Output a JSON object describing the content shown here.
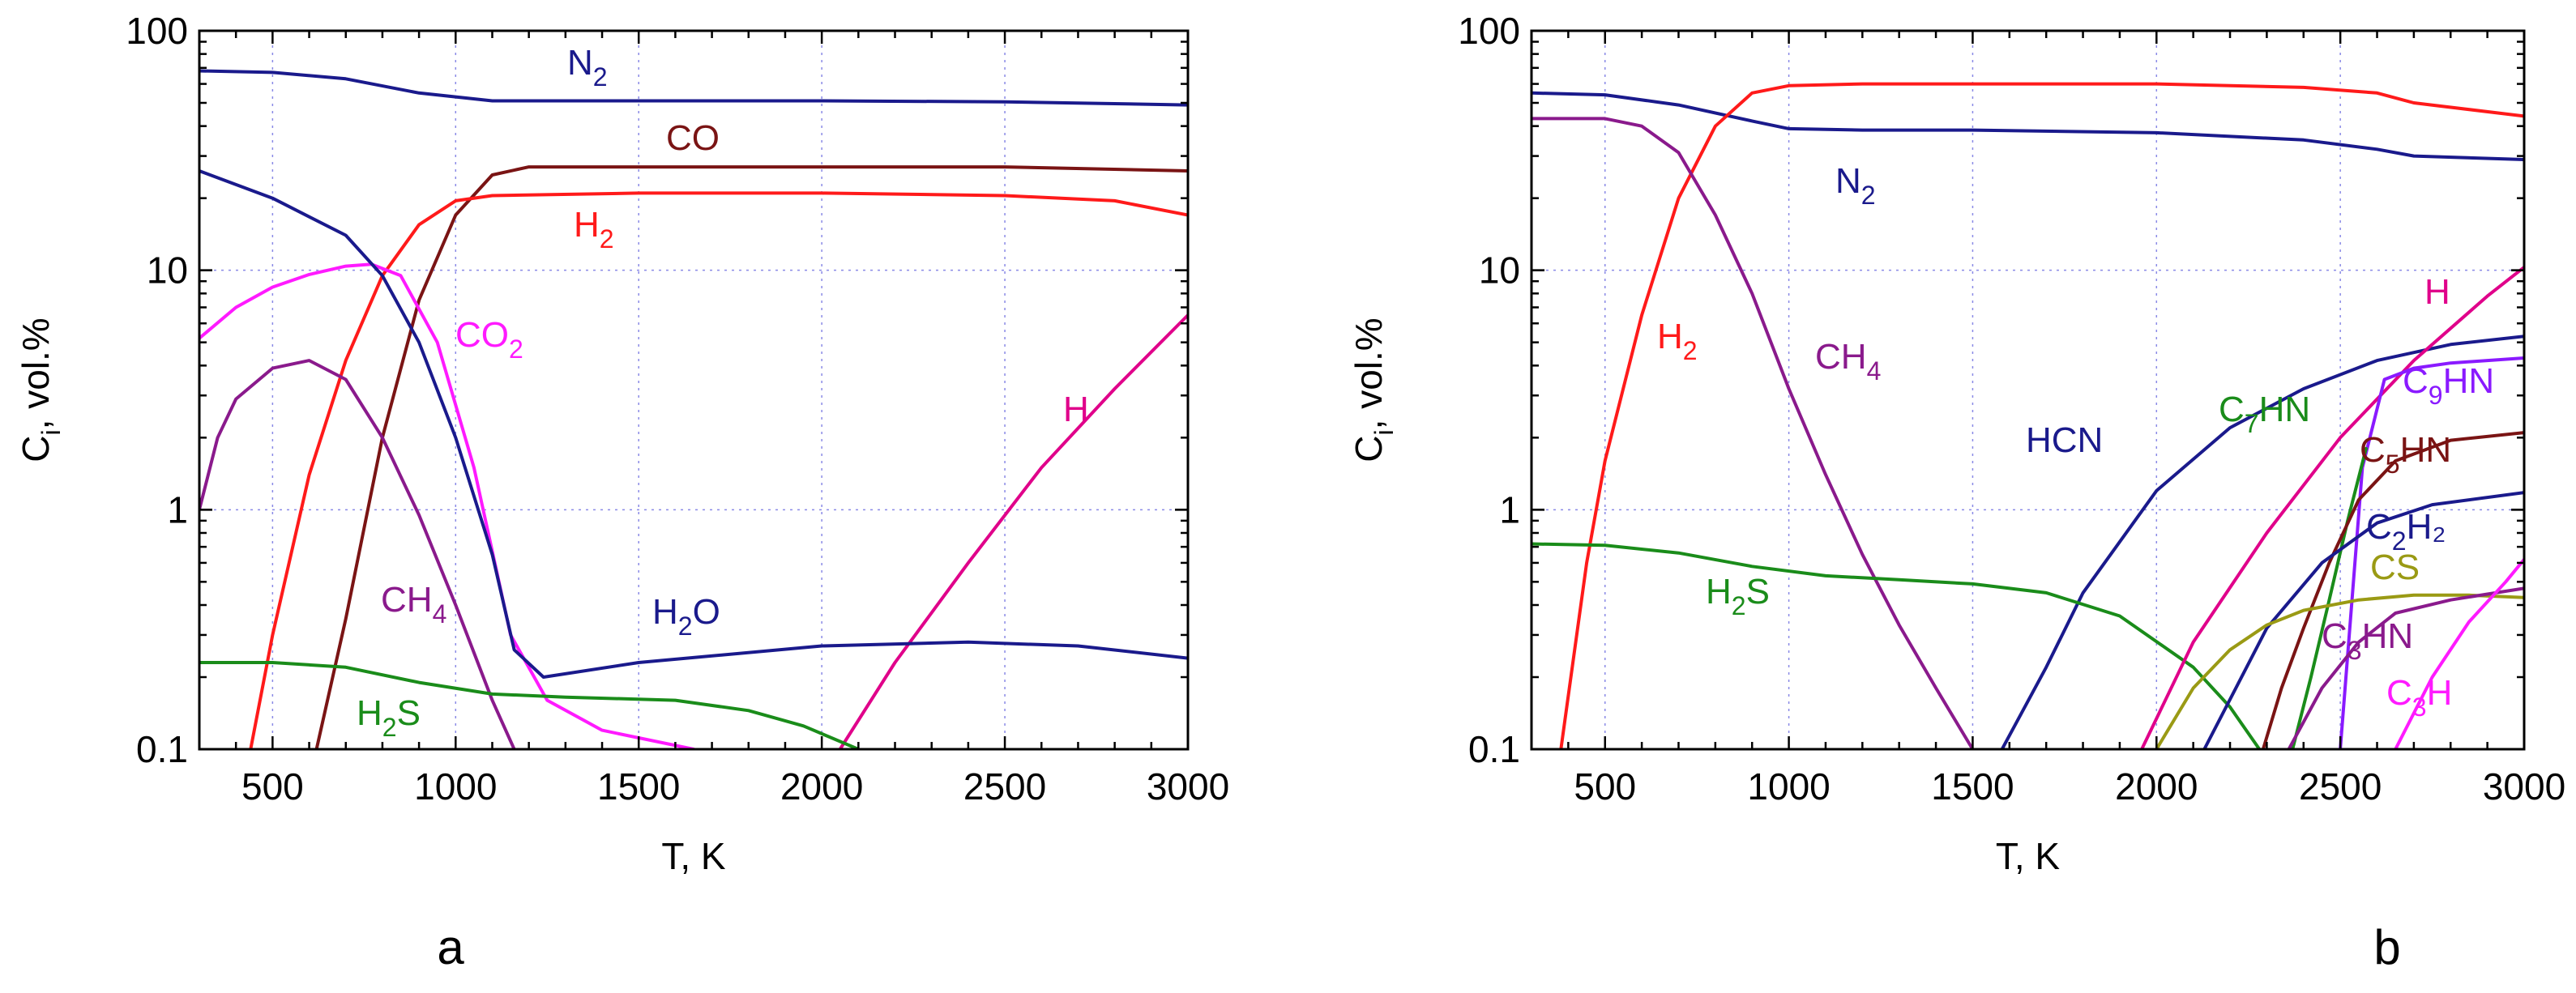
{
  "chart_data": [
    {
      "type": "line",
      "panel_label": "a",
      "xlabel": "T, K",
      "ylabel": {
        "base": "C",
        "sub": "i",
        "rest": ", vol.%"
      },
      "xlim": [
        300,
        3000
      ],
      "ylim": [
        0.1,
        100
      ],
      "yscale": "log",
      "xticks": [
        500,
        1000,
        1500,
        2000,
        2500,
        3000
      ],
      "yticks": [
        0.1,
        1,
        10,
        100
      ],
      "ytick_labels": [
        "0.1",
        "1",
        "10",
        "100"
      ],
      "grid": true,
      "series": [
        {
          "name": "N2",
          "label": {
            "base": "N",
            "sub": "2",
            "rest": ""
          },
          "color": "#1a1a8c",
          "x": [
            300,
            500,
            700,
            900,
            1100,
            1500,
            2000,
            2500,
            3000
          ],
          "y": [
            68,
            67,
            63,
            55,
            51,
            51,
            51,
            50.5,
            49
          ]
        },
        {
          "name": "CO",
          "label": {
            "base": "CO",
            "sub": "",
            "rest": ""
          },
          "color": "#7a1414",
          "x": [
            620,
            700,
            800,
            900,
            1000,
            1100,
            1200,
            1500,
            2000,
            2500,
            3000
          ],
          "y": [
            0.1,
            0.35,
            2.0,
            7.5,
            17,
            25,
            27,
            27,
            27,
            27,
            26
          ]
        },
        {
          "name": "H2",
          "label": {
            "base": "H",
            "sub": "2",
            "rest": ""
          },
          "color": "#ff1a1a",
          "x": [
            440,
            500,
            600,
            700,
            800,
            900,
            1000,
            1100,
            1500,
            2000,
            2500,
            2800,
            3000
          ],
          "y": [
            0.1,
            0.3,
            1.4,
            4.2,
            9.5,
            15.5,
            19.5,
            20.5,
            21,
            21,
            20.5,
            19.5,
            17
          ]
        },
        {
          "name": "CO2",
          "label": {
            "base": "CO",
            "sub": "2",
            "rest": ""
          },
          "color": "#ff1aff",
          "x": [
            300,
            400,
            500,
            600,
            700,
            770,
            850,
            950,
            1050,
            1150,
            1250,
            1400,
            1650
          ],
          "y": [
            5.2,
            7.0,
            8.5,
            9.6,
            10.4,
            10.6,
            9.5,
            5.0,
            1.5,
            0.3,
            0.16,
            0.12,
            0.1
          ]
        },
        {
          "name": "H",
          "label": {
            "base": "H",
            "sub": "",
            "rest": ""
          },
          "color": "#e0008a",
          "x": [
            2050,
            2200,
            2400,
            2600,
            2800,
            3000
          ],
          "y": [
            0.1,
            0.23,
            0.6,
            1.5,
            3.2,
            6.5
          ]
        },
        {
          "name": "CH4",
          "label": {
            "base": "CH",
            "sub": "4",
            "rest": ""
          },
          "color": "#8a1a8c",
          "x": [
            300,
            350,
            400,
            500,
            600,
            700,
            800,
            900,
            1000,
            1100,
            1160
          ],
          "y": [
            1.0,
            2.0,
            2.9,
            3.9,
            4.2,
            3.5,
            2.0,
            0.95,
            0.4,
            0.16,
            0.1
          ]
        },
        {
          "name": "H2O",
          "label": {
            "base": "H",
            "sub": "2",
            "rest": "O"
          },
          "color": "#1a1a8c",
          "x": [
            300,
            500,
            700,
            800,
            900,
            1000,
            1100,
            1160,
            1240,
            1500,
            2000,
            2400,
            2700,
            3000
          ],
          "y": [
            26,
            20,
            14,
            9.5,
            5.0,
            2.0,
            0.65,
            0.26,
            0.2,
            0.23,
            0.27,
            0.28,
            0.27,
            0.24
          ]
        },
        {
          "name": "H2S",
          "label": {
            "base": "H",
            "sub": "2",
            "rest": "S"
          },
          "color": "#1a8c1a",
          "x": [
            300,
            500,
            700,
            900,
            1100,
            1300,
            1600,
            1800,
            1950,
            2100
          ],
          "y": [
            0.23,
            0.23,
            0.22,
            0.19,
            0.17,
            0.165,
            0.16,
            0.145,
            0.125,
            0.1
          ]
        }
      ]
    },
    {
      "type": "line",
      "panel_label": "b",
      "xlabel": "T, K",
      "ylabel": {
        "base": "C",
        "sub": "i",
        "rest": ", vol.%"
      },
      "xlim": [
        300,
        3000
      ],
      "ylim": [
        0.1,
        100
      ],
      "yscale": "log",
      "xticks": [
        500,
        1000,
        1500,
        2000,
        2500,
        3000
      ],
      "yticks": [
        0.1,
        1,
        10,
        100
      ],
      "ytick_labels": [
        "0.1",
        "1",
        "10",
        "100"
      ],
      "grid": true,
      "series": [
        {
          "name": "N2",
          "label": {
            "base": "N",
            "sub": "2",
            "rest": ""
          },
          "color": "#1a1a8c",
          "x": [
            300,
            500,
            700,
            900,
            1000,
            1200,
            1500,
            2000,
            2400,
            2600,
            2700,
            3000
          ],
          "y": [
            55,
            54,
            49,
            42,
            39,
            38.5,
            38.5,
            37.5,
            35,
            32,
            30,
            29
          ]
        },
        {
          "name": "H2",
          "label": {
            "base": "H",
            "sub": "2",
            "rest": ""
          },
          "color": "#ff1a1a",
          "x": [
            380,
            450,
            500,
            600,
            700,
            800,
            900,
            1000,
            1200,
            1500,
            2000,
            2400,
            2600,
            2700,
            3000
          ],
          "y": [
            0.1,
            0.6,
            1.6,
            6.5,
            20,
            40,
            55,
            59,
            60,
            60,
            60,
            58,
            55,
            50,
            44
          ]
        },
        {
          "name": "CH4",
          "label": {
            "base": "CH",
            "sub": "4",
            "rest": ""
          },
          "color": "#8a1a8c",
          "x": [
            300,
            500,
            600,
            700,
            800,
            900,
            1000,
            1100,
            1200,
            1300,
            1400,
            1500
          ],
          "y": [
            43,
            43,
            40,
            31,
            17,
            8,
            3.2,
            1.4,
            0.65,
            0.33,
            0.18,
            0.1
          ]
        },
        {
          "name": "HCN",
          "label": {
            "base": "HCN",
            "sub": "",
            "rest": ""
          },
          "color": "#1a1a8c",
          "x": [
            1580,
            1700,
            1800,
            2000,
            2200,
            2400,
            2600,
            2800,
            3000
          ],
          "y": [
            0.1,
            0.22,
            0.45,
            1.2,
            2.2,
            3.2,
            4.2,
            4.9,
            5.3
          ]
        },
        {
          "name": "H2S",
          "label": {
            "base": "H",
            "sub": "2",
            "rest": "S"
          },
          "color": "#1a8c1a",
          "x": [
            300,
            500,
            700,
            900,
            1100,
            1300,
            1500,
            1700,
            1900,
            2100,
            2200,
            2280
          ],
          "y": [
            0.72,
            0.71,
            0.66,
            0.58,
            0.53,
            0.51,
            0.49,
            0.45,
            0.36,
            0.22,
            0.15,
            0.1
          ]
        },
        {
          "name": "H",
          "label": {
            "base": "H",
            "sub": "",
            "rest": ""
          },
          "color": "#e0008a",
          "x": [
            1960,
            2100,
            2300,
            2500,
            2700,
            2900,
            3000
          ],
          "y": [
            0.1,
            0.28,
            0.8,
            2.0,
            4.2,
            7.8,
            10.3
          ]
        },
        {
          "name": "C9HN",
          "label": {
            "base": "C",
            "sub": "9",
            "rest": "HN"
          },
          "color": "#8a1aff",
          "x": [
            2500,
            2560,
            2620,
            2700,
            2800,
            2900,
            3000
          ],
          "y": [
            0.1,
            1.5,
            3.5,
            3.9,
            4.1,
            4.2,
            4.3
          ]
        },
        {
          "name": "C7HN",
          "label": {
            "base": "C",
            "sub": "7",
            "rest": "HN"
          },
          "color": "#1a8c1a",
          "x": [
            2370,
            2420,
            2470,
            2520,
            2570
          ],
          "y": [
            0.1,
            0.2,
            0.42,
            0.9,
            1.8
          ]
        },
        {
          "name": "C5HN",
          "label": {
            "base": "C",
            "sub": "5",
            "rest": "HN"
          },
          "color": "#7a1414",
          "x": [
            2290,
            2340,
            2400,
            2470,
            2550,
            2650,
            2800,
            3000
          ],
          "y": [
            0.1,
            0.18,
            0.32,
            0.6,
            1.1,
            1.6,
            1.95,
            2.1
          ]
        },
        {
          "name": "C2H2",
          "label": {
            "base": "C",
            "sub": "2",
            "rest": "H₂"
          },
          "color": "#1a1a8c",
          "x": [
            2130,
            2300,
            2450,
            2600,
            2750,
            3000
          ],
          "y": [
            0.1,
            0.32,
            0.6,
            0.88,
            1.05,
            1.18
          ]
        },
        {
          "name": "CS",
          "label": {
            "base": "CS",
            "sub": "",
            "rest": ""
          },
          "color": "#9a9a14",
          "x": [
            2000,
            2100,
            2200,
            2300,
            2400,
            2550,
            2700,
            2850,
            3000
          ],
          "y": [
            0.1,
            0.18,
            0.26,
            0.33,
            0.38,
            0.42,
            0.44,
            0.44,
            0.43
          ]
        },
        {
          "name": "C3HN",
          "label": {
            "base": "C",
            "sub": "3",
            "rest": "HN"
          },
          "color": "#8a1a8c",
          "x": [
            2360,
            2450,
            2550,
            2650,
            2800,
            3000
          ],
          "y": [
            0.1,
            0.18,
            0.28,
            0.37,
            0.42,
            0.47
          ]
        },
        {
          "name": "C3H",
          "label": {
            "base": "C",
            "sub": "3",
            "rest": "H"
          },
          "color": "#ff1aff",
          "x": [
            2650,
            2750,
            2850,
            2950,
            3000
          ],
          "y": [
            0.1,
            0.2,
            0.34,
            0.5,
            0.62
          ]
        }
      ]
    }
  ]
}
